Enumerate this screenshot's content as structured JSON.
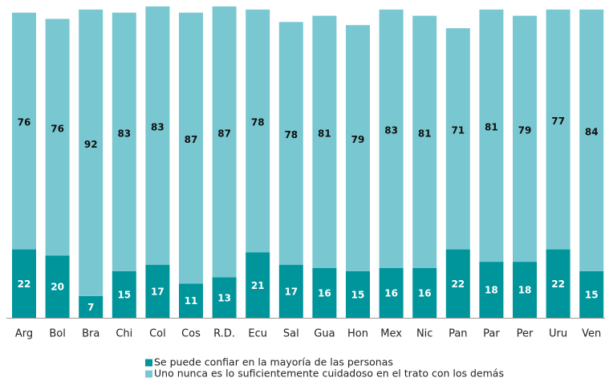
{
  "chart_data": {
    "type": "stacked_bar",
    "categories": [
      "Arg",
      "Bol",
      "Bra",
      "Chi",
      "Col",
      "Cos",
      "R.D.",
      "Ecu",
      "Sal",
      "Gua",
      "Hon",
      "Mex",
      "Nic",
      "Pan",
      "Par",
      "Per",
      "Uru",
      "Ven"
    ],
    "series": [
      {
        "name": "Se puede confiar en la mayoría de las personas",
        "color": "#00959b",
        "values": [
          22,
          20,
          7,
          15,
          17,
          11,
          13,
          21,
          17,
          16,
          15,
          16,
          16,
          22,
          18,
          18,
          22,
          15
        ]
      },
      {
        "name": "Uno nunca es lo suficientemente cuidadoso en el trato con los demás",
        "color": "#79c8d1",
        "values": [
          76,
          76,
          92,
          83,
          83,
          87,
          87,
          78,
          78,
          81,
          79,
          83,
          81,
          71,
          81,
          79,
          77,
          84
        ]
      }
    ],
    "ylim": [
      0,
      100
    ],
    "legend": "bottom"
  }
}
